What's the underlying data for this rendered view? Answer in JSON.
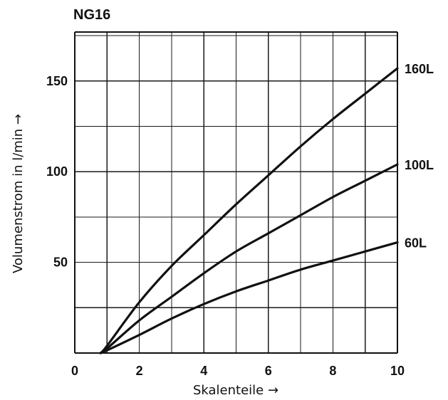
{
  "chart_data": {
    "type": "line",
    "title": "NG16",
    "xlabel": "Skalenteile →",
    "ylabel": "Volumenstrom in l/min →",
    "xlim": [
      0,
      10
    ],
    "ylim": [
      0,
      177
    ],
    "x_ticks": [
      0,
      2,
      4,
      6,
      8,
      10
    ],
    "y_ticks": [
      50,
      100,
      150
    ],
    "x_grid_step": 1,
    "y_grid_step": 25,
    "grid": true,
    "series": [
      {
        "name": "160L",
        "x": [
          0.8,
          1.0,
          2.0,
          3.0,
          4.0,
          5.0,
          6.0,
          7.0,
          8.0,
          9.0,
          10.0
        ],
        "y": [
          0,
          4,
          28,
          48,
          65,
          82,
          98,
          114,
          129,
          143,
          157
        ]
      },
      {
        "name": "100L",
        "x": [
          0.8,
          1.0,
          2.0,
          3.0,
          4.0,
          5.0,
          6.0,
          7.0,
          8.0,
          9.0,
          10.0
        ],
        "y": [
          0,
          2.5,
          18,
          31,
          44,
          56,
          66,
          76,
          86,
          95,
          104
        ]
      },
      {
        "name": "60L",
        "x": [
          0.8,
          1.0,
          2.0,
          3.0,
          4.0,
          5.0,
          6.0,
          7.0,
          8.0,
          9.0,
          10.0
        ],
        "y": [
          0,
          1.5,
          10,
          19,
          27,
          34,
          40,
          46,
          51,
          56,
          61
        ]
      }
    ]
  }
}
